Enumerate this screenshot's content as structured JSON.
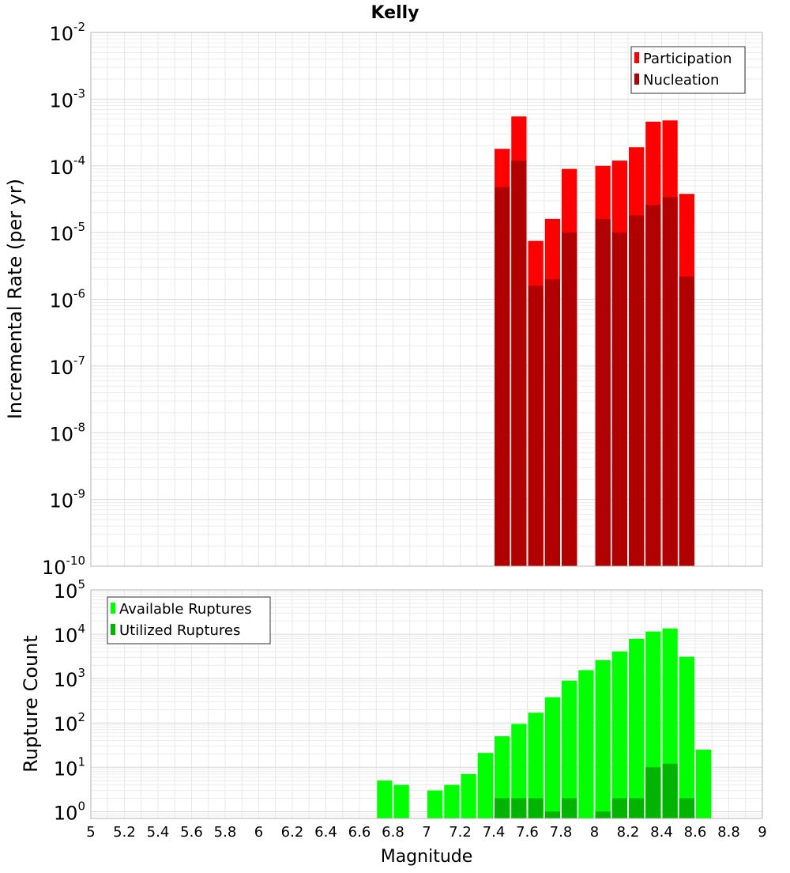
{
  "chart_data": [
    {
      "type": "bar",
      "title": "Kelly",
      "ylabel": "Incremental Rate (per yr)",
      "xlabel": "",
      "yscale": "log",
      "ylim": [
        1e-10,
        0.01
      ],
      "xlim": [
        5,
        9
      ],
      "grid": true,
      "legend_position": "top-right",
      "x": [
        7.45,
        7.55,
        7.65,
        7.75,
        7.85,
        8.05,
        8.15,
        8.25,
        8.35,
        8.45,
        8.55
      ],
      "series": [
        {
          "name": "Participation",
          "color": "#ff0000",
          "values": [
            0.00018,
            0.00055,
            7.5e-06,
            1.6e-05,
            9e-05,
            0.0001,
            0.00012,
            0.00019,
            0.00046,
            0.00048,
            3.8e-05
          ]
        },
        {
          "name": "Nucleation",
          "color": "#b00000",
          "values": [
            4.8e-05,
            0.00012,
            1.6e-06,
            2e-06,
            1e-05,
            1.6e-05,
            1e-05,
            1.8e-05,
            2.6e-05,
            3.4e-05,
            2.2e-06
          ]
        }
      ],
      "ytick_exponents": [
        -10,
        -9,
        -8,
        -7,
        -6,
        -5,
        -4,
        -3,
        -2
      ]
    },
    {
      "type": "bar",
      "title": "",
      "ylabel": "Rupture Count",
      "xlabel": "Magnitude",
      "yscale": "log",
      "ylim": [
        0.7,
        100000
      ],
      "xlim": [
        5,
        9
      ],
      "grid": true,
      "legend_position": "top-left",
      "x": [
        6.75,
        6.85,
        7.05,
        7.15,
        7.25,
        7.35,
        7.45,
        7.55,
        7.65,
        7.75,
        7.85,
        7.95,
        8.05,
        8.15,
        8.25,
        8.35,
        8.45,
        8.55,
        8.65
      ],
      "series": [
        {
          "name": "Available Ruptures",
          "color": "#00ff00",
          "values": [
            5,
            4,
            3,
            4,
            7,
            21,
            50,
            95,
            170,
            380,
            900,
            1550,
            2600,
            4100,
            7900,
            11500,
            13500,
            3100,
            25
          ]
        },
        {
          "name": "Utilized Ruptures",
          "color": "#00b400",
          "values": [
            0,
            0,
            0,
            0,
            0,
            0,
            2,
            2,
            2,
            1,
            2,
            0,
            1,
            2,
            2,
            10,
            12,
            2,
            0
          ]
        }
      ],
      "ytick_exponents": [
        0,
        1,
        2,
        3,
        4,
        5
      ],
      "xticks": [
        "5",
        "5.2",
        "5.4",
        "5.6",
        "5.8",
        "6",
        "6.2",
        "6.4",
        "6.6",
        "6.8",
        "7",
        "7.2",
        "7.4",
        "7.6",
        "7.8",
        "8",
        "8.2",
        "8.4",
        "8.6",
        "8.8",
        "9"
      ]
    }
  ]
}
